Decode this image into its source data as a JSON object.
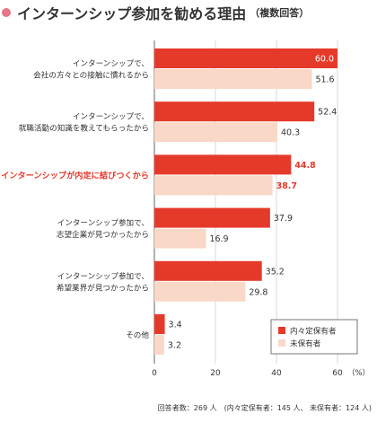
{
  "title": {
    "main": "インターンシップ参加を勧める理由",
    "sub": "（複数回答）"
  },
  "colors": {
    "title_dot": "#e8748a",
    "series_primary": "#e53a2a",
    "series_secondary": "#f9d8c8",
    "highlight_text": "#e53a2a"
  },
  "note": "回答者数：269 人　(内々定保有者：145 人、 未保有者：124 人)",
  "chart_data": {
    "type": "bar",
    "orientation": "horizontal",
    "categories": [
      [
        "インターンシップで、",
        "会社の方々との接触に慣れるから"
      ],
      [
        "インターンシップで、",
        "就職活動の知識を教えてもらったから"
      ],
      [
        "インターンシップが内定に結びつくから"
      ],
      [
        "インターンシップ参加で、",
        "志望企業が見つかったから"
      ],
      [
        "インターンシップ参加で、",
        "希望業界が見つかったから"
      ],
      [
        "その他"
      ]
    ],
    "highlight_category_index": 2,
    "series": [
      {
        "name": "内々定保有者",
        "values": [
          60.0,
          52.4,
          44.8,
          37.9,
          35.2,
          3.4
        ],
        "labels": [
          "60.0",
          "52.4",
          "44.8",
          "37.9",
          "35.2",
          "3.4"
        ]
      },
      {
        "name": "未保有者",
        "values": [
          51.6,
          40.3,
          38.7,
          16.9,
          29.8,
          3.2
        ],
        "labels": [
          "51.6",
          "40.3",
          "38.7",
          "16.9",
          "29.8",
          "3.2"
        ]
      }
    ],
    "xlim": [
      0,
      70
    ],
    "x_ticks": [
      "0",
      "20",
      "40",
      "60"
    ],
    "x_tick_values": [
      0,
      20,
      40,
      60
    ],
    "x_unit": "（%）",
    "grid": true,
    "legend_position": "bottom-right"
  }
}
